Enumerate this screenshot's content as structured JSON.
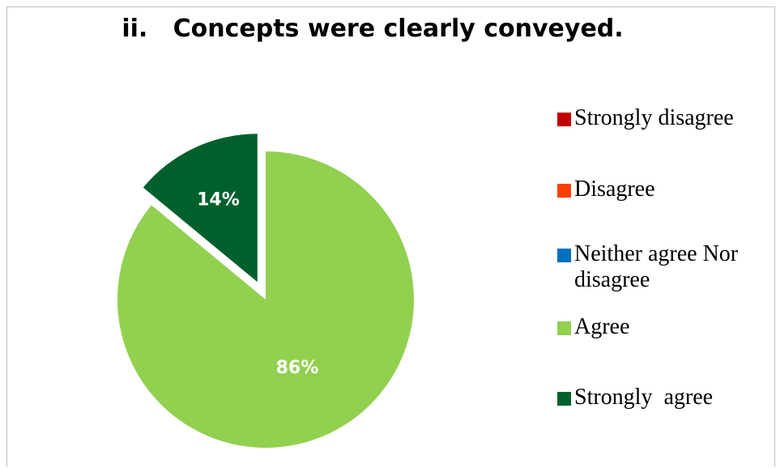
{
  "chart_data": {
    "type": "pie",
    "title": "ii.   Concepts were clearly conveyed.",
    "categories": [
      "Strongly disagree",
      "Disagree",
      "Neither agree Nor disagree",
      "Agree",
      "Strongly  agree"
    ],
    "values": [
      0,
      0,
      0,
      86,
      14
    ],
    "data_labels": [
      "",
      "",
      "",
      "86%",
      "14%"
    ],
    "colors": [
      "#c00000",
      "#ff4000",
      "#0070c0",
      "#92d050",
      "#00602b"
    ],
    "exploded": "Strongly  agree",
    "legend_position": "right",
    "label_color": "#ffffff"
  }
}
